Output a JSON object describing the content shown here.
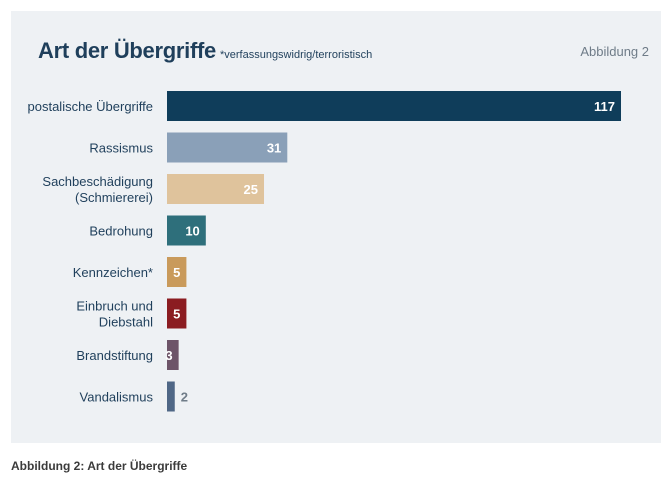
{
  "header": {
    "title": "Art der Übergriffe",
    "subtitle": "*verfassungswidrig/terroristisch",
    "figure_label": "Abbildung 2"
  },
  "caption": "Abbildung 2: Art der Übergriffe",
  "chart_data": {
    "type": "bar",
    "orientation": "horizontal",
    "title": "Art der Übergriffe",
    "subtitle": "*verfassungswidrig/terroristisch",
    "categories": [
      [
        "postalische Übergriffe"
      ],
      [
        "Rassismus"
      ],
      [
        "Sachbeschädigung",
        "(Schmiererei)"
      ],
      [
        "Bedrohung"
      ],
      [
        "Kennzeichen*"
      ],
      [
        "Einbruch und",
        "Diebstahl"
      ],
      [
        "Brandstiftung"
      ],
      [
        "Vandalismus"
      ]
    ],
    "values": [
      117,
      31,
      25,
      10,
      5,
      5,
      3,
      2
    ],
    "colors": [
      "#0f3d5a",
      "#8aa0b8",
      "#dfc39c",
      "#2e6f7b",
      "#c99a5b",
      "#8b1c21",
      "#6d5468",
      "#4f6786"
    ],
    "value_label_inside": [
      true,
      true,
      true,
      true,
      true,
      true,
      true,
      false
    ],
    "xlim": [
      0,
      117
    ],
    "grid": false,
    "legend": "none"
  }
}
